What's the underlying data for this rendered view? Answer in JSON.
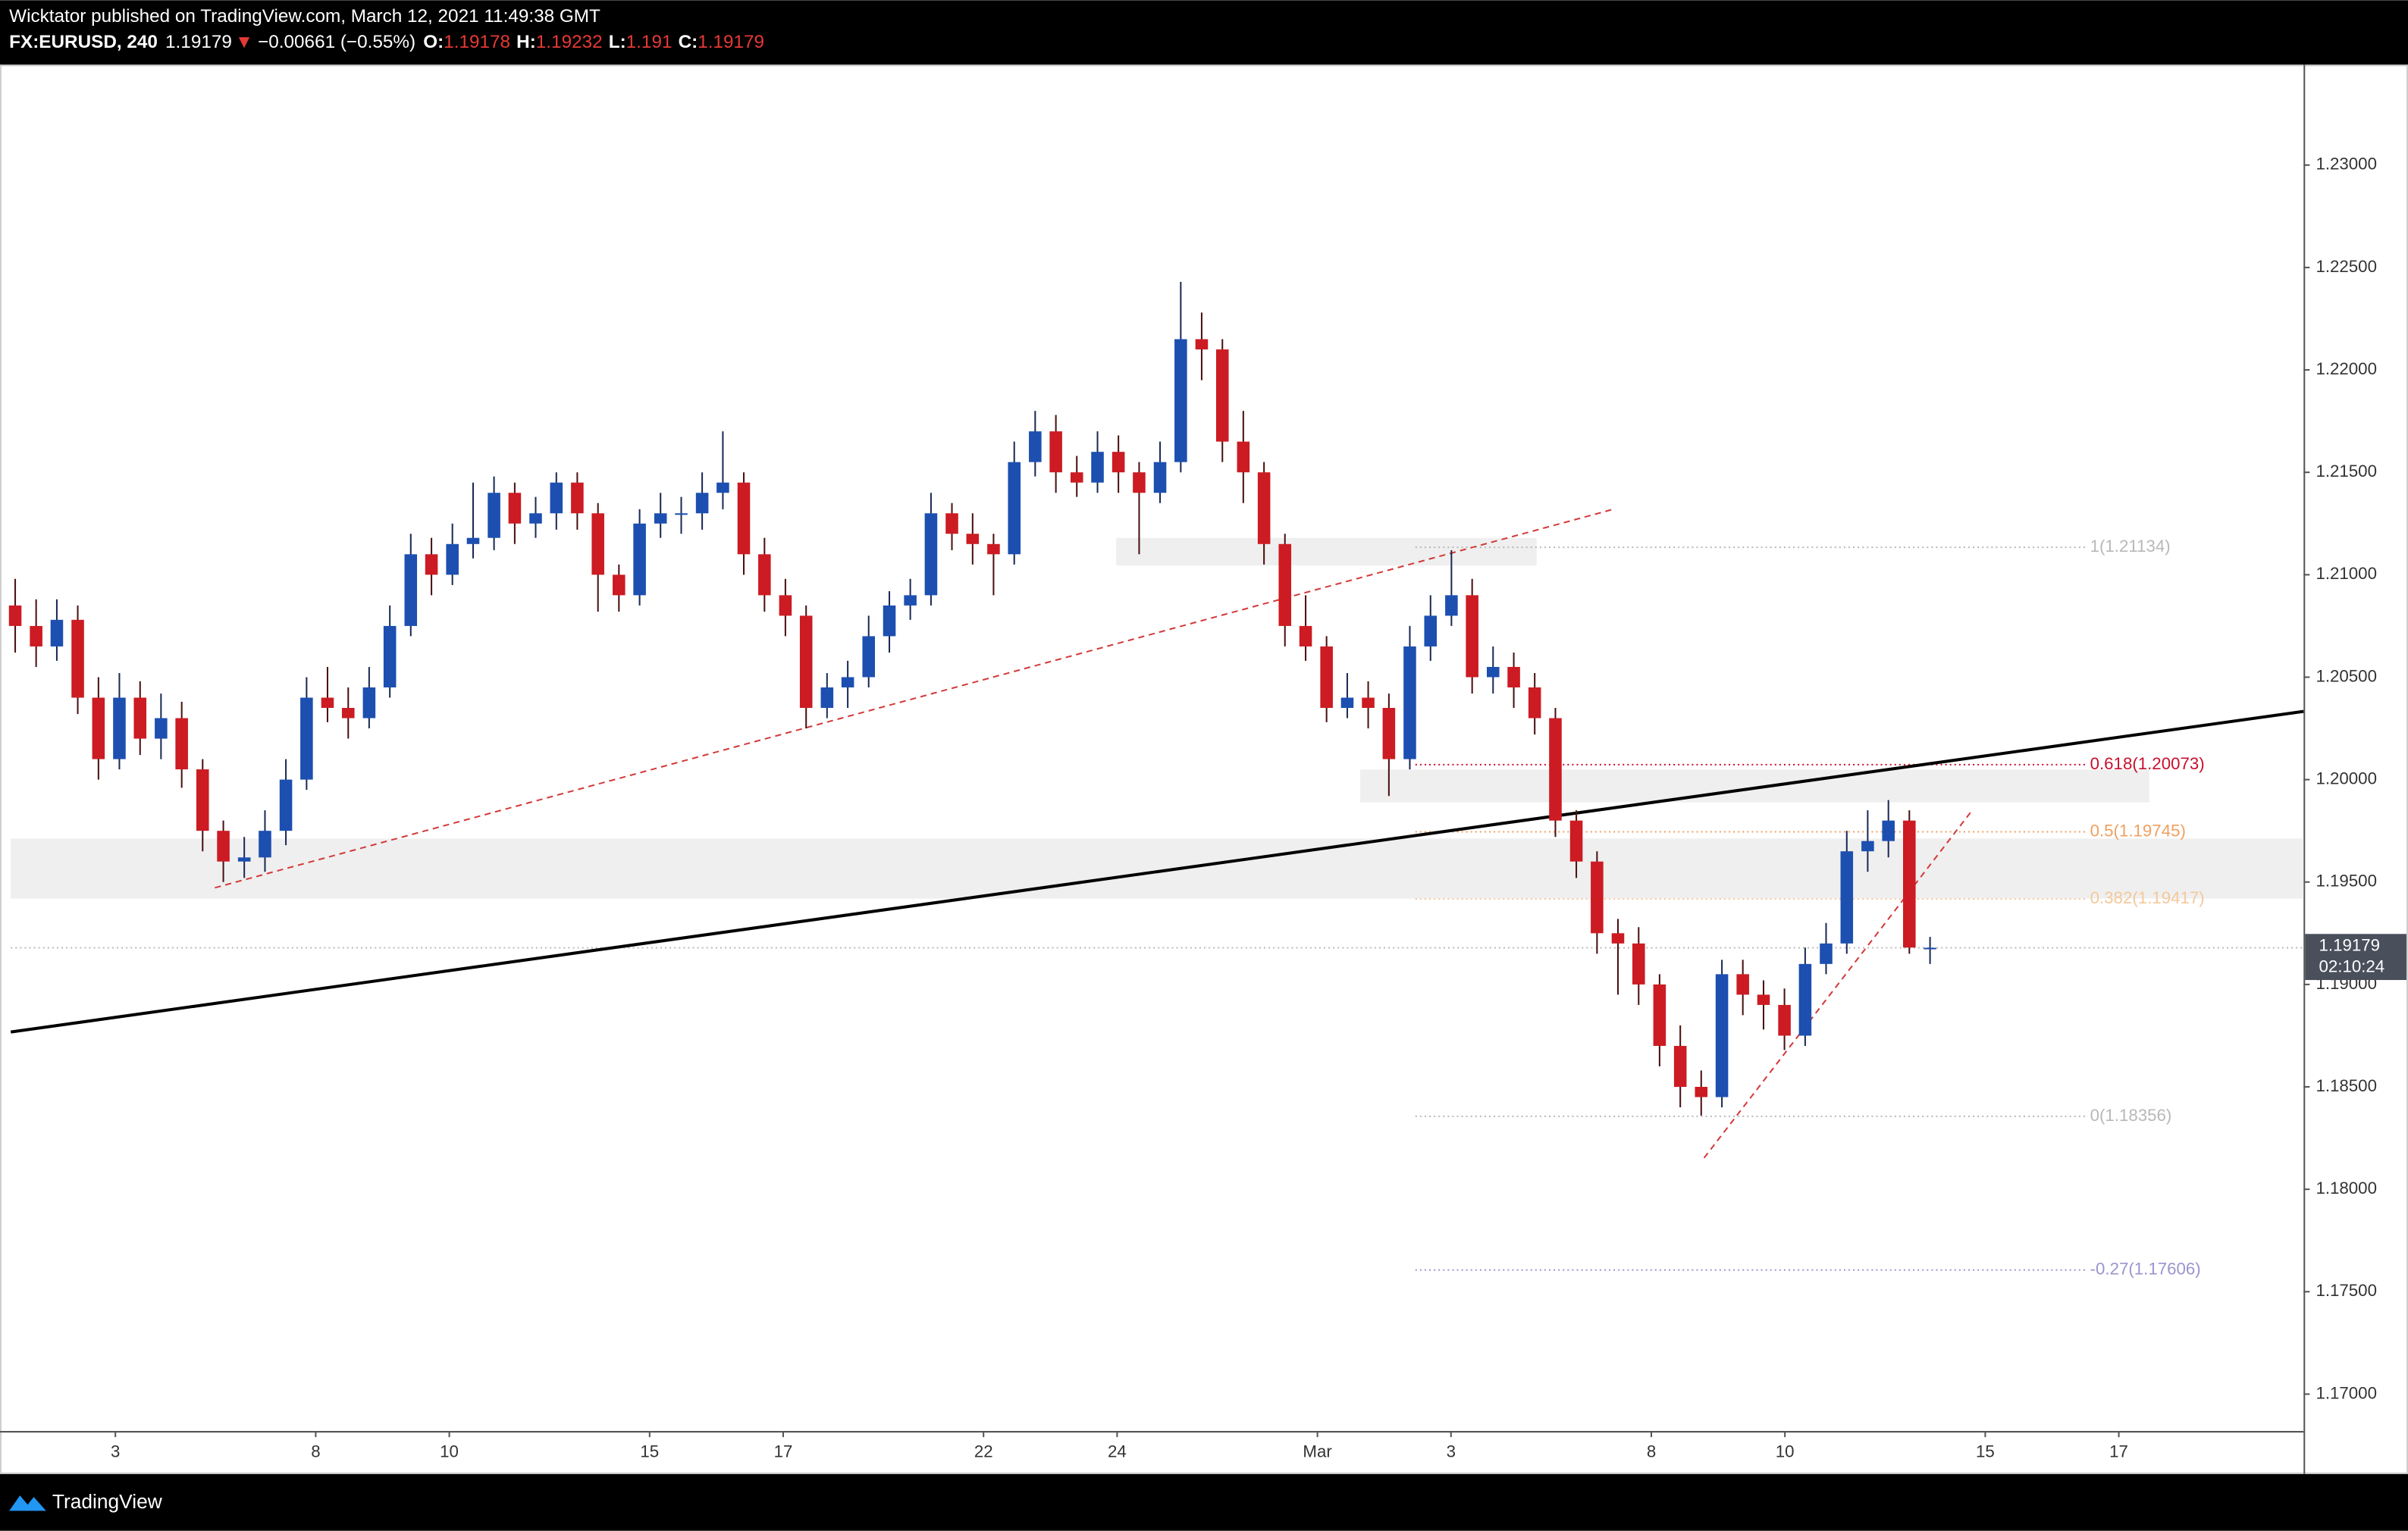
{
  "header": {
    "title": "Wicktator published on TradingView.com, March 12, 2021 11:49:38 GMT",
    "symbol": "FX:EURUSD, 240",
    "direction": "▼",
    "change": "−0.00661 (−0.55%)",
    "ohlc_labels": [
      "O:",
      "H:",
      "L:",
      "C:"
    ]
  },
  "footer": {
    "brand": "TradingView"
  },
  "chart_data": {
    "type": "candlestick",
    "up_color": "#1c4fb0",
    "down_color": "#cc1b22",
    "grid": false,
    "ylim": [
      1.1682,
      1.2349
    ],
    "yticks": [
      {
        "value": 1.17,
        "label": "1.17000"
      },
      {
        "value": 1.175,
        "label": "1.17500"
      },
      {
        "value": 1.18,
        "label": "1.18000"
      },
      {
        "value": 1.185,
        "label": "1.18500"
      },
      {
        "value": 1.19,
        "label": "1.19000"
      },
      {
        "value": 1.195,
        "label": "1.19500"
      },
      {
        "value": 1.2,
        "label": "1.20000"
      },
      {
        "value": 1.205,
        "label": "1.20500"
      },
      {
        "value": 1.21,
        "label": "1.21000"
      },
      {
        "value": 1.215,
        "label": "1.21500"
      },
      {
        "value": 1.22,
        "label": "1.22000"
      },
      {
        "value": 1.225,
        "label": "1.22500"
      },
      {
        "value": 1.23,
        "label": "1.23000"
      }
    ],
    "xlim": [
      1.3,
      104.3
    ],
    "xticks": [
      {
        "value": 6,
        "label": "3"
      },
      {
        "value": 15,
        "label": "8"
      },
      {
        "value": 21,
        "label": "10"
      },
      {
        "value": 30,
        "label": "15"
      },
      {
        "value": 36,
        "label": "17"
      },
      {
        "value": 45,
        "label": "22"
      },
      {
        "value": 51,
        "label": "24"
      },
      {
        "value": 60,
        "label": "Mar"
      },
      {
        "value": 66,
        "label": "3"
      },
      {
        "value": 75,
        "label": "8"
      },
      {
        "value": 81,
        "label": "10"
      },
      {
        "value": 90,
        "label": "15"
      },
      {
        "value": 96,
        "label": "17"
      }
    ],
    "x": [
      1.5,
      2.44,
      3.37,
      4.31,
      5.24,
      6.18,
      7.11,
      8.05,
      8.98,
      9.92,
      10.85,
      11.79,
      12.72,
      13.66,
      14.59,
      15.53,
      16.46,
      17.4,
      18.33,
      19.27,
      20.2,
      21.14,
      22.07,
      23.01,
      23.94,
      24.88,
      25.81,
      26.75,
      27.68,
      28.62,
      29.55,
      30.49,
      31.42,
      32.36,
      33.29,
      34.23,
      35.16,
      36.1,
      37.03,
      37.97,
      38.9,
      39.84,
      40.77,
      41.71,
      42.64,
      43.58,
      44.51,
      45.45,
      46.38,
      47.32,
      48.25,
      49.19,
      50.12,
      51.06,
      51.99,
      52.93,
      53.86,
      54.8,
      55.73,
      56.67,
      57.6,
      58.54,
      59.47,
      60.41,
      61.34,
      62.28,
      63.21,
      64.15,
      65.08,
      66.02,
      66.95,
      67.89,
      68.82,
      69.76,
      70.69,
      71.63,
      72.56,
      73.5,
      74.43,
      75.37,
      76.3,
      77.24,
      78.17,
      79.11,
      80.04,
      80.98,
      81.91,
      82.85,
      83.78,
      84.72,
      85.65,
      86.59,
      87.52
    ],
    "candles": [
      [
        1.2085,
        1.2098,
        1.2062,
        1.2075
      ],
      [
        1.2075,
        1.2088,
        1.2055,
        1.2065
      ],
      [
        1.2065,
        1.2088,
        1.2058,
        1.2078
      ],
      [
        1.2078,
        1.2085,
        1.2032,
        1.204
      ],
      [
        1.204,
        1.205,
        1.2,
        1.201
      ],
      [
        1.201,
        1.2052,
        1.2005,
        1.204
      ],
      [
        1.204,
        1.2048,
        1.2012,
        1.202
      ],
      [
        1.202,
        1.2042,
        1.201,
        1.203
      ],
      [
        1.203,
        1.2038,
        1.1996,
        1.2005
      ],
      [
        1.2005,
        1.201,
        1.1965,
        1.1975
      ],
      [
        1.1975,
        1.198,
        1.195,
        1.196
      ],
      [
        1.196,
        1.1972,
        1.1952,
        1.1962
      ],
      [
        1.1962,
        1.1985,
        1.1955,
        1.1975
      ],
      [
        1.1975,
        1.201,
        1.1968,
        1.2
      ],
      [
        1.2,
        1.205,
        1.1995,
        1.204
      ],
      [
        1.204,
        1.2055,
        1.2028,
        1.2035
      ],
      [
        1.2035,
        1.2045,
        1.202,
        1.203
      ],
      [
        1.203,
        1.2055,
        1.2025,
        1.2045
      ],
      [
        1.2045,
        1.2085,
        1.204,
        1.2075
      ],
      [
        1.2075,
        1.212,
        1.207,
        1.211
      ],
      [
        1.211,
        1.2118,
        1.209,
        1.21
      ],
      [
        1.21,
        1.2125,
        1.2095,
        1.2115
      ],
      [
        1.2115,
        1.2145,
        1.2108,
        1.2118
      ],
      [
        1.2118,
        1.2148,
        1.2112,
        1.214
      ],
      [
        1.214,
        1.2145,
        1.2115,
        1.2125
      ],
      [
        1.2125,
        1.2138,
        1.2118,
        1.213
      ],
      [
        1.213,
        1.215,
        1.2122,
        1.2145
      ],
      [
        1.2145,
        1.215,
        1.2122,
        1.213
      ],
      [
        1.213,
        1.2135,
        1.2082,
        1.21
      ],
      [
        1.21,
        1.2105,
        1.2082,
        1.209
      ],
      [
        1.209,
        1.2132,
        1.2085,
        1.2125
      ],
      [
        1.2125,
        1.214,
        1.2118,
        1.213
      ],
      [
        1.213,
        1.2138,
        1.212,
        1.213
      ],
      [
        1.213,
        1.215,
        1.2122,
        1.214
      ],
      [
        1.214,
        1.217,
        1.2132,
        1.2145
      ],
      [
        1.2145,
        1.215,
        1.21,
        1.211
      ],
      [
        1.211,
        1.2118,
        1.2082,
        1.209
      ],
      [
        1.209,
        1.2098,
        1.207,
        1.208
      ],
      [
        1.208,
        1.2085,
        1.2025,
        1.2035
      ],
      [
        1.2035,
        1.2052,
        1.203,
        1.2045
      ],
      [
        1.2045,
        1.2058,
        1.2035,
        1.205
      ],
      [
        1.205,
        1.208,
        1.2045,
        1.207
      ],
      [
        1.207,
        1.2092,
        1.2062,
        1.2085
      ],
      [
        1.2085,
        1.2098,
        1.2078,
        1.209
      ],
      [
        1.209,
        1.214,
        1.2085,
        1.213
      ],
      [
        1.213,
        1.2135,
        1.2112,
        1.212
      ],
      [
        1.212,
        1.213,
        1.2105,
        1.2115
      ],
      [
        1.2115,
        1.212,
        1.209,
        1.211
      ],
      [
        1.211,
        1.2165,
        1.2105,
        1.2155
      ],
      [
        1.2155,
        1.218,
        1.2148,
        1.217
      ],
      [
        1.217,
        1.2178,
        1.214,
        1.215
      ],
      [
        1.215,
        1.2158,
        1.2138,
        1.2145
      ],
      [
        1.2145,
        1.217,
        1.214,
        1.216
      ],
      [
        1.216,
        1.2168,
        1.214,
        1.215
      ],
      [
        1.215,
        1.2155,
        1.211,
        1.214
      ],
      [
        1.214,
        1.2165,
        1.2135,
        1.2155
      ],
      [
        1.2155,
        1.2243,
        1.215,
        1.2215
      ],
      [
        1.2215,
        1.2228,
        1.2195,
        1.221
      ],
      [
        1.221,
        1.2215,
        1.2155,
        1.2165
      ],
      [
        1.2165,
        1.218,
        1.2135,
        1.215
      ],
      [
        1.215,
        1.2155,
        1.2105,
        1.2115
      ],
      [
        1.2115,
        1.212,
        1.2065,
        1.2075
      ],
      [
        1.2075,
        1.209,
        1.2058,
        1.2065
      ],
      [
        1.2065,
        1.207,
        1.2028,
        1.2035
      ],
      [
        1.2035,
        1.2052,
        1.203,
        1.204
      ],
      [
        1.204,
        1.2048,
        1.2025,
        1.2035
      ],
      [
        1.2035,
        1.2042,
        1.1992,
        1.201
      ],
      [
        1.201,
        1.2075,
        1.2005,
        1.2065
      ],
      [
        1.2065,
        1.209,
        1.2058,
        1.208
      ],
      [
        1.208,
        1.2112,
        1.2075,
        1.209
      ],
      [
        1.209,
        1.2098,
        1.2042,
        1.205
      ],
      [
        1.205,
        1.2065,
        1.2042,
        1.2055
      ],
      [
        1.2055,
        1.2062,
        1.2035,
        1.2045
      ],
      [
        1.2045,
        1.2052,
        1.2022,
        1.203
      ],
      [
        1.203,
        1.2035,
        1.1972,
        1.198
      ],
      [
        1.198,
        1.1985,
        1.1952,
        1.196
      ],
      [
        1.196,
        1.1965,
        1.1915,
        1.1925
      ],
      [
        1.1925,
        1.1932,
        1.1895,
        1.192
      ],
      [
        1.192,
        1.1928,
        1.189,
        1.19
      ],
      [
        1.19,
        1.1905,
        1.186,
        1.187
      ],
      [
        1.187,
        1.188,
        1.184,
        1.185
      ],
      [
        1.185,
        1.1858,
        1.1836,
        1.1845
      ],
      [
        1.1845,
        1.1912,
        1.184,
        1.1905
      ],
      [
        1.1905,
        1.1912,
        1.1885,
        1.1895
      ],
      [
        1.1895,
        1.1902,
        1.1878,
        1.189
      ],
      [
        1.189,
        1.1898,
        1.1868,
        1.1875
      ],
      [
        1.1875,
        1.1918,
        1.187,
        1.191
      ],
      [
        1.191,
        1.193,
        1.1905,
        1.192
      ],
      [
        1.192,
        1.1975,
        1.1915,
        1.1965
      ],
      [
        1.1965,
        1.1985,
        1.1955,
        1.197
      ],
      [
        1.197,
        1.199,
        1.1962,
        1.198
      ],
      [
        1.198,
        1.1985,
        1.1915,
        1.1918
      ],
      [
        1.19178,
        1.19232,
        1.191,
        1.19179
      ]
    ],
    "zones": [
      {
        "x": [
          1.3,
          104.3
        ],
        "y": [
          1.19419,
          1.19712
        ],
        "color": "#ebebeb"
      },
      {
        "x": [
          50.96,
          69.85
        ],
        "y": [
          1.21045,
          1.2118
        ],
        "color": "#ebebeb"
      },
      {
        "x": [
          61.92,
          97.37
        ],
        "y": [
          1.19889,
          1.20049
        ],
        "color": "#ebebeb"
      }
    ],
    "lines": [
      {
        "x": [
          1.3,
          104.3
        ],
        "y": [
          1.18768,
          1.20333
        ],
        "color": "#000000",
        "dash": false
      },
      {
        "x": [
          10.47,
          73.37
        ],
        "y": [
          1.19472,
          1.21322
        ],
        "color": "#d43a3a",
        "dash": true
      },
      {
        "x": [
          77.37,
          89.44
        ],
        "y": [
          1.18153,
          1.19854
        ],
        "color": "#d43a3a",
        "dash": true
      }
    ],
    "fib_x": [
      64.4,
      94.5
    ],
    "fib_levels": [
      {
        "value": 1.21134,
        "label": "1(1.21134)",
        "color": "#b8b8b8"
      },
      {
        "value": 1.20073,
        "label": "0.618(1.20073)",
        "color": "#c8102e"
      },
      {
        "value": 1.19745,
        "label": "0.5(1.19745)",
        "color": "#f0a060"
      },
      {
        "value": 1.19417,
        "label": "0.382(1.19417)",
        "color": "#f5c89a"
      },
      {
        "value": 1.18356,
        "label": "0(1.18356)",
        "color": "#b8b8b8"
      },
      {
        "value": 1.17606,
        "label": "-0.27(1.17606)",
        "color": "#9a94d0"
      }
    ],
    "countdown": "02:10:24"
  }
}
